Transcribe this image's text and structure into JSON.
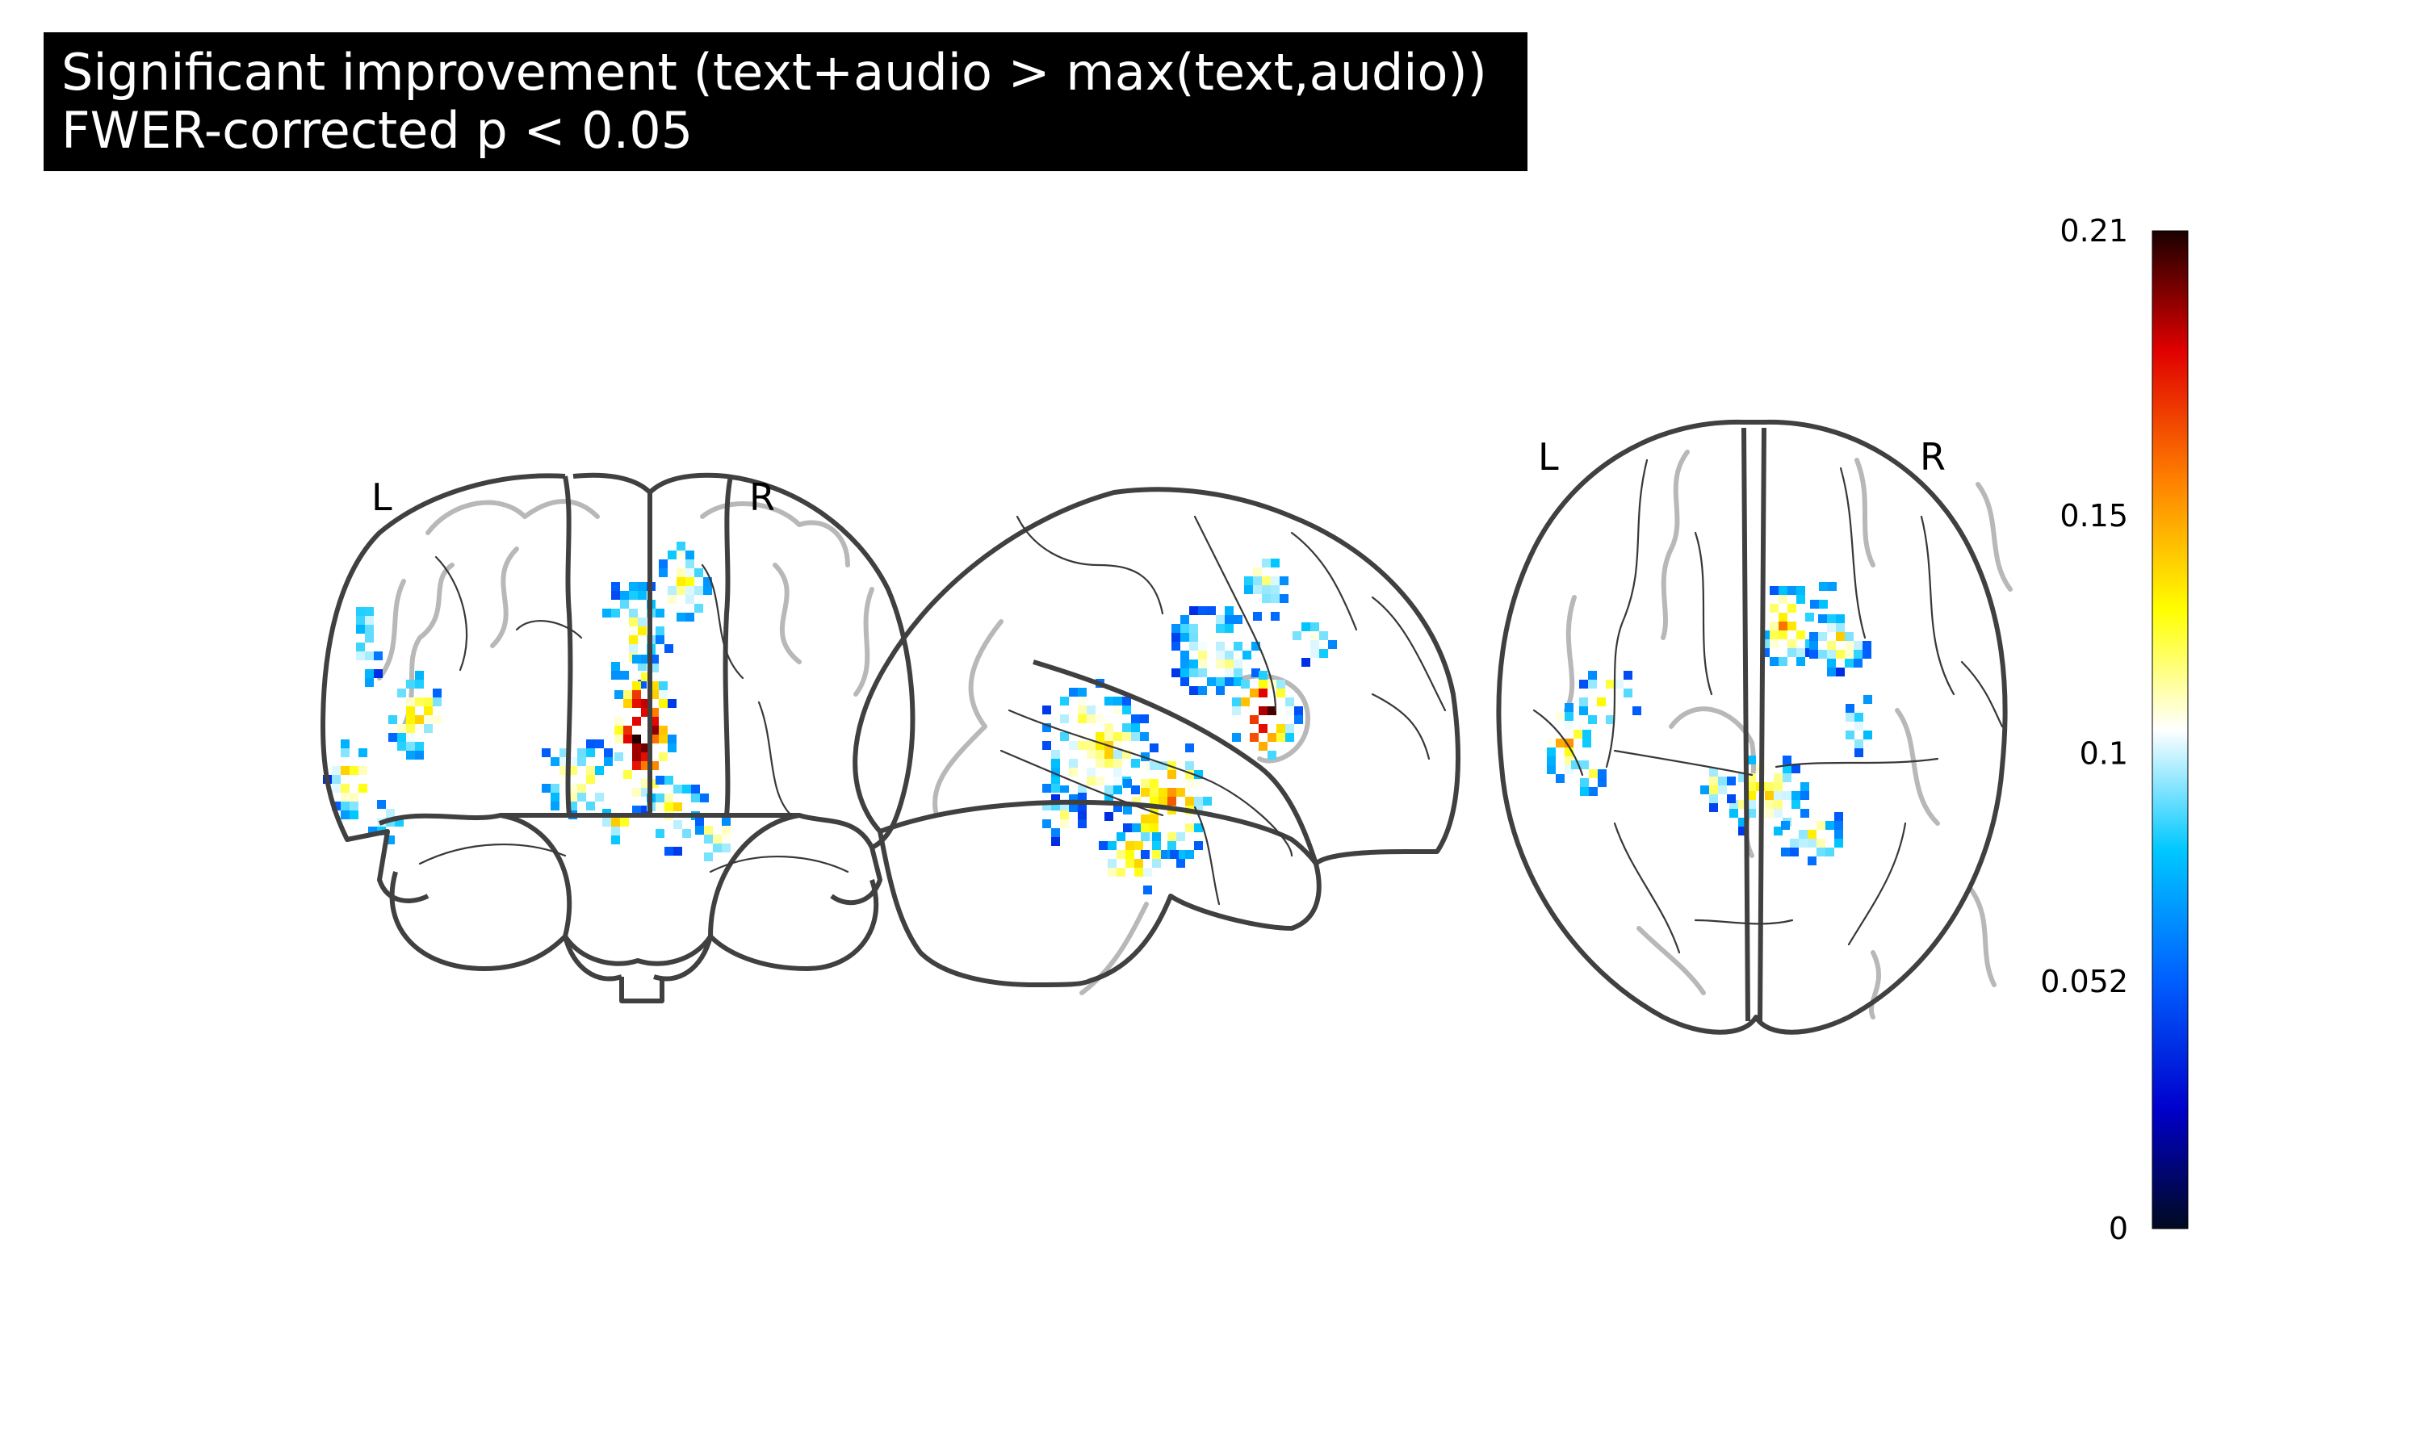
{
  "title": {
    "line1": "Significant improvement (text+audio > max(text,audio))",
    "line2": "FWER-corrected p < 0.05"
  },
  "views": {
    "coronal": {
      "left_label": "L",
      "right_label": "R"
    },
    "sagittal": {},
    "axial": {
      "left_label": "L",
      "right_label": "R"
    }
  },
  "colorbar": {
    "colormap": "cold_hot",
    "min": 0,
    "max": 0.21,
    "tick_labels": [
      "0.21",
      "0.15",
      "0.1",
      "0.052",
      "0"
    ],
    "tick_values": [
      0.21,
      0.15,
      0.1,
      0.052,
      0
    ],
    "colors": [
      "#000a1f",
      "#0000ff",
      "#00c8ff",
      "#ffffff",
      "#ffff00",
      "#ff8000",
      "#e00000",
      "#1a0000"
    ]
  }
}
